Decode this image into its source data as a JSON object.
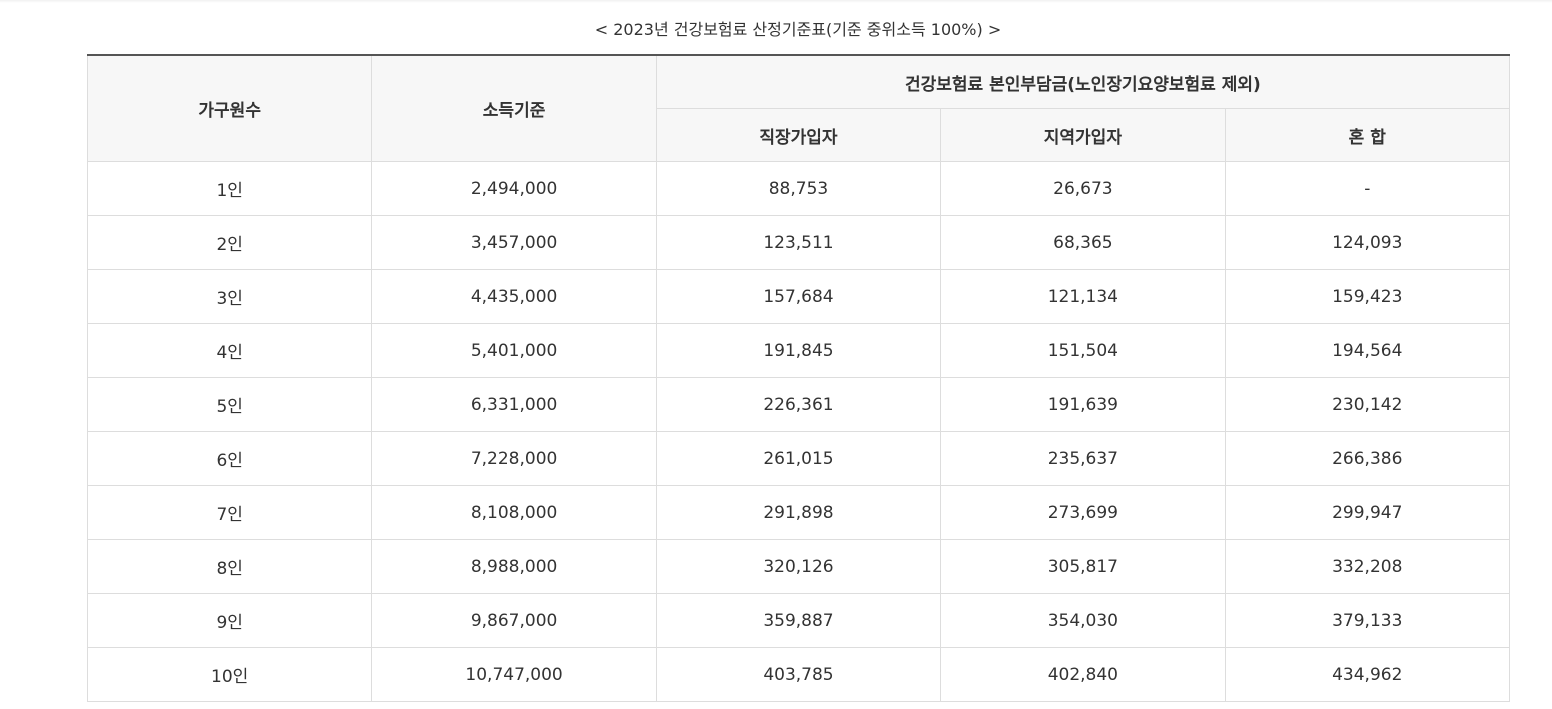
{
  "caption": "< 2023년 건강보험료 산정기준표(기준 중위소득 100%) >",
  "table": {
    "headers": {
      "household": "가구원수",
      "income": "소득기준",
      "premium_group": "건강보험료 본인부담금(노인장기요양보험료 제외)",
      "employee": "직장가입자",
      "regional": "지역가입자",
      "mixed": "혼 합"
    },
    "rows": [
      {
        "household": "1인",
        "income": "2,494,000",
        "employee": "88,753",
        "regional": "26,673",
        "mixed": "-"
      },
      {
        "household": "2인",
        "income": "3,457,000",
        "employee": "123,511",
        "regional": "68,365",
        "mixed": "124,093"
      },
      {
        "household": "3인",
        "income": "4,435,000",
        "employee": "157,684",
        "regional": "121,134",
        "mixed": "159,423"
      },
      {
        "household": "4인",
        "income": "5,401,000",
        "employee": "191,845",
        "regional": "151,504",
        "mixed": "194,564"
      },
      {
        "household": "5인",
        "income": "6,331,000",
        "employee": "226,361",
        "regional": "191,639",
        "mixed": "230,142"
      },
      {
        "household": "6인",
        "income": "7,228,000",
        "employee": "261,015",
        "regional": "235,637",
        "mixed": "266,386"
      },
      {
        "household": "7인",
        "income": "8,108,000",
        "employee": "291,898",
        "regional": "273,699",
        "mixed": "299,947"
      },
      {
        "household": "8인",
        "income": "8,988,000",
        "employee": "320,126",
        "regional": "305,817",
        "mixed": "332,208"
      },
      {
        "household": "9인",
        "income": "9,867,000",
        "employee": "359,887",
        "regional": "354,030",
        "mixed": "379,133"
      },
      {
        "household": "10인",
        "income": "10,747,000",
        "employee": "403,785",
        "regional": "402,840",
        "mixed": "434,962"
      }
    ]
  }
}
